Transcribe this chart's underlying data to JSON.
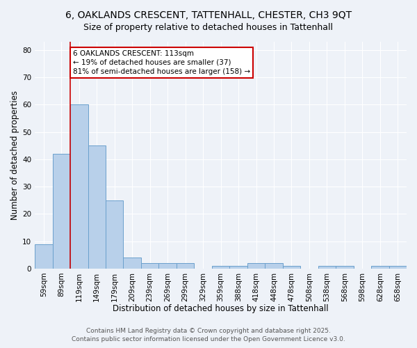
{
  "title_line1": "6, OAKLANDS CRESCENT, TATTENHALL, CHESTER, CH3 9QT",
  "title_line2": "Size of property relative to detached houses in Tattenhall",
  "xlabel": "Distribution of detached houses by size in Tattenhall",
  "ylabel": "Number of detached properties",
  "categories": [
    "59sqm",
    "89sqm",
    "119sqm",
    "149sqm",
    "179sqm",
    "209sqm",
    "239sqm",
    "269sqm",
    "299sqm",
    "329sqm",
    "359sqm",
    "388sqm",
    "418sqm",
    "448sqm",
    "478sqm",
    "508sqm",
    "538sqm",
    "568sqm",
    "598sqm",
    "628sqm",
    "658sqm"
  ],
  "values": [
    9,
    42,
    60,
    45,
    25,
    4,
    2,
    2,
    2,
    0,
    1,
    1,
    2,
    2,
    1,
    0,
    1,
    1,
    0,
    1,
    1
  ],
  "bar_color": "#b8d0ea",
  "bar_edge_color": "#6aa0cc",
  "ylim": [
    0,
    83
  ],
  "yticks": [
    0,
    10,
    20,
    30,
    40,
    50,
    60,
    70,
    80
  ],
  "red_line_index": 2,
  "annotation_text": "6 OAKLANDS CRESCENT: 113sqm\n← 19% of detached houses are smaller (37)\n81% of semi-detached houses are larger (158) →",
  "annotation_box_color": "#ffffff",
  "annotation_box_edge": "#cc0000",
  "footer_line1": "Contains HM Land Registry data © Crown copyright and database right 2025.",
  "footer_line2": "Contains public sector information licensed under the Open Government Licence v3.0.",
  "background_color": "#eef2f8",
  "grid_color": "#ffffff",
  "title_fontsize": 10,
  "subtitle_fontsize": 9,
  "axis_label_fontsize": 8.5,
  "tick_fontsize": 7.5,
  "footer_fontsize": 6.5,
  "annotation_fontsize": 7.5
}
